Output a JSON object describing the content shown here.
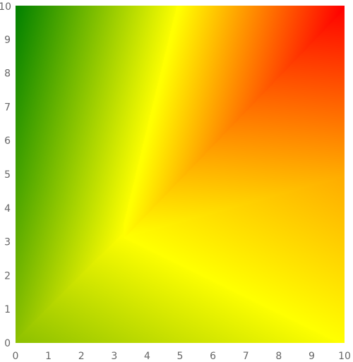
{
  "chart_data": {
    "type": "heatmap",
    "title": "",
    "xlabel": "",
    "ylabel": "",
    "xlim": [
      0,
      10
    ],
    "ylim": [
      0,
      10
    ],
    "x_ticks": [
      "0",
      "1",
      "2",
      "3",
      "4",
      "5",
      "6",
      "7",
      "8",
      "9",
      "10"
    ],
    "y_ticks": [
      "0",
      "1",
      "2",
      "3",
      "4",
      "5",
      "6",
      "7",
      "8",
      "9",
      "10"
    ],
    "grid": false,
    "legend": "none",
    "gradient": {
      "type": "triangulated-color-interpolation",
      "colormap": [
        "#008000",
        "#ffff00",
        "#ff0000"
      ],
      "control_points": [
        {
          "x": 0,
          "y": 0,
          "color": "#8cc000"
        },
        {
          "x": 10,
          "y": 0,
          "color": "#ffff00"
        },
        {
          "x": 0,
          "y": 10,
          "color": "#008000"
        },
        {
          "x": 10,
          "y": 10,
          "color": "#ff0000"
        },
        {
          "x": 3.3,
          "y": 3.2,
          "color": "#ffff00"
        },
        {
          "x": 5,
          "y": 10,
          "color": "#ffff00"
        },
        {
          "x": 0,
          "y": 5,
          "color": "#40a000"
        },
        {
          "x": 10,
          "y": 5,
          "color": "#ffaa00"
        },
        {
          "x": 5,
          "y": 0,
          "color": "#c8e000"
        }
      ]
    }
  }
}
